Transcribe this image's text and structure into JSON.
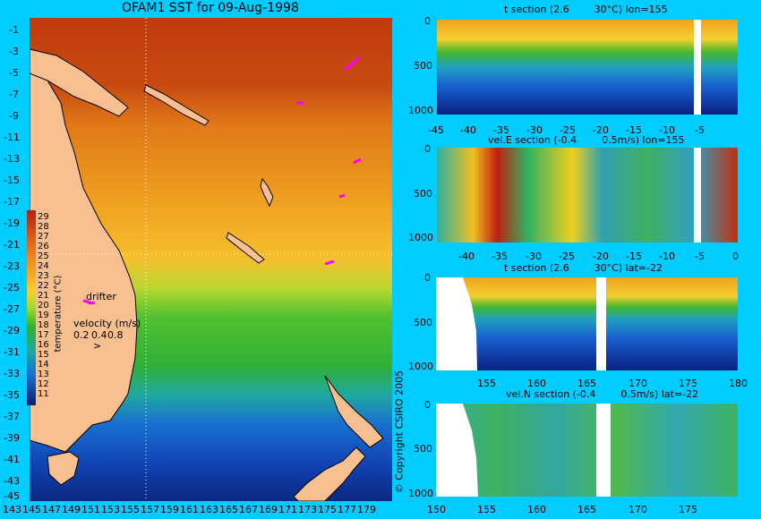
{
  "map": {
    "title": "OFAM1 SST for 09-Aug-1998",
    "lat_ticks": [
      "-1",
      "-3",
      "-5",
      "-7",
      "-9",
      "-11",
      "-13",
      "-15",
      "-17",
      "-19",
      "-21",
      "-23",
      "-25",
      "-27",
      "-29",
      "-31",
      "-33",
      "-35",
      "-37",
      "-39",
      "-41",
      "-43",
      "-45"
    ],
    "lon_ticks": [
      "143",
      "145",
      "147",
      "149",
      "151",
      "153",
      "155",
      "157",
      "159",
      "161",
      "163",
      "165",
      "167",
      "169",
      "171",
      "173",
      "175",
      "177",
      "179"
    ],
    "colorbar": {
      "label": "temperature (°C)",
      "ticks": [
        "29",
        "28",
        "27",
        "26",
        "25",
        "24",
        "23",
        "22",
        "21",
        "20",
        "19",
        "18",
        "17",
        "16",
        "15",
        "14",
        "13",
        "12",
        "11"
      ]
    },
    "drifter_label": "drifter",
    "velocity": {
      "label": "velocity (m/s)",
      "values": [
        "0.2",
        "0.4",
        "0.8"
      ]
    },
    "copyright": "© Copyright CSIRO 2005",
    "colors": {
      "ocean_warm": "#c84010",
      "ocean_mid": "#f0a020",
      "ocean_cool": "#30b030",
      "ocean_cold": "#1050c0",
      "land": "#f8c090",
      "drifter": "#ff00ff",
      "background": "#00ccff"
    }
  },
  "sections": [
    {
      "title": "t section (2.6        30°C) lon=155",
      "x_ticks": [
        "-45",
        "-40",
        "-35",
        "-30",
        "-25",
        "-20",
        "-15",
        "-10",
        "-5"
      ],
      "y_ticks": [
        "0",
        "500",
        "1000"
      ]
    },
    {
      "title": "vel.E section (-0.4        0.5m/s) lon=155",
      "x_ticks": [
        "-40",
        "-35",
        "-30",
        "-25",
        "-20",
        "-15",
        "-10",
        "-5",
        "0"
      ],
      "y_ticks": [
        "0",
        "500",
        "1000"
      ]
    },
    {
      "title": "t section (2.6        30°C) lat=-22",
      "x_ticks": [
        "155",
        "160",
        "165",
        "170",
        "175",
        "180"
      ],
      "y_ticks": [
        "0",
        "500",
        "1000"
      ]
    },
    {
      "title": "vel.N section (-0.4        0.5m/s) lat=-22",
      "x_ticks": [
        "150",
        "155",
        "160",
        "165",
        "170",
        "175"
      ],
      "y_ticks": [
        "0",
        "500",
        "1000"
      ]
    }
  ],
  "chart_data": [
    {
      "type": "heatmap",
      "title": "OFAM1 SST for 09-Aug-1998",
      "xlim": [
        143,
        180
      ],
      "ylim": [
        -45,
        0
      ],
      "colorbar_range": [
        11,
        29
      ],
      "colorbar_label": "temperature (°C)",
      "grid": "dotted crosshair at lon 155, lat -22"
    },
    {
      "type": "heatmap",
      "title": "t section (2.6        30°C) lon=155",
      "xlim": [
        -45,
        0
      ],
      "ylim": [
        1000,
        0
      ],
      "color_range": [
        2.6,
        30
      ]
    },
    {
      "type": "heatmap",
      "title": "vel.E section (-0.4        0.5m/s) lon=155",
      "xlim": [
        -45,
        0
      ],
      "ylim": [
        1000,
        0
      ],
      "color_range": [
        -0.4,
        0.5
      ]
    },
    {
      "type": "heatmap",
      "title": "t section (2.6        30°C) lat=-22",
      "xlim": [
        150,
        180
      ],
      "ylim": [
        1000,
        0
      ],
      "color_range": [
        2.6,
        30
      ]
    },
    {
      "type": "heatmap",
      "title": "vel.N section (-0.4        0.5m/s) lat=-22",
      "xlim": [
        150,
        180
      ],
      "ylim": [
        1000,
        0
      ],
      "color_range": [
        -0.4,
        0.5
      ]
    }
  ]
}
